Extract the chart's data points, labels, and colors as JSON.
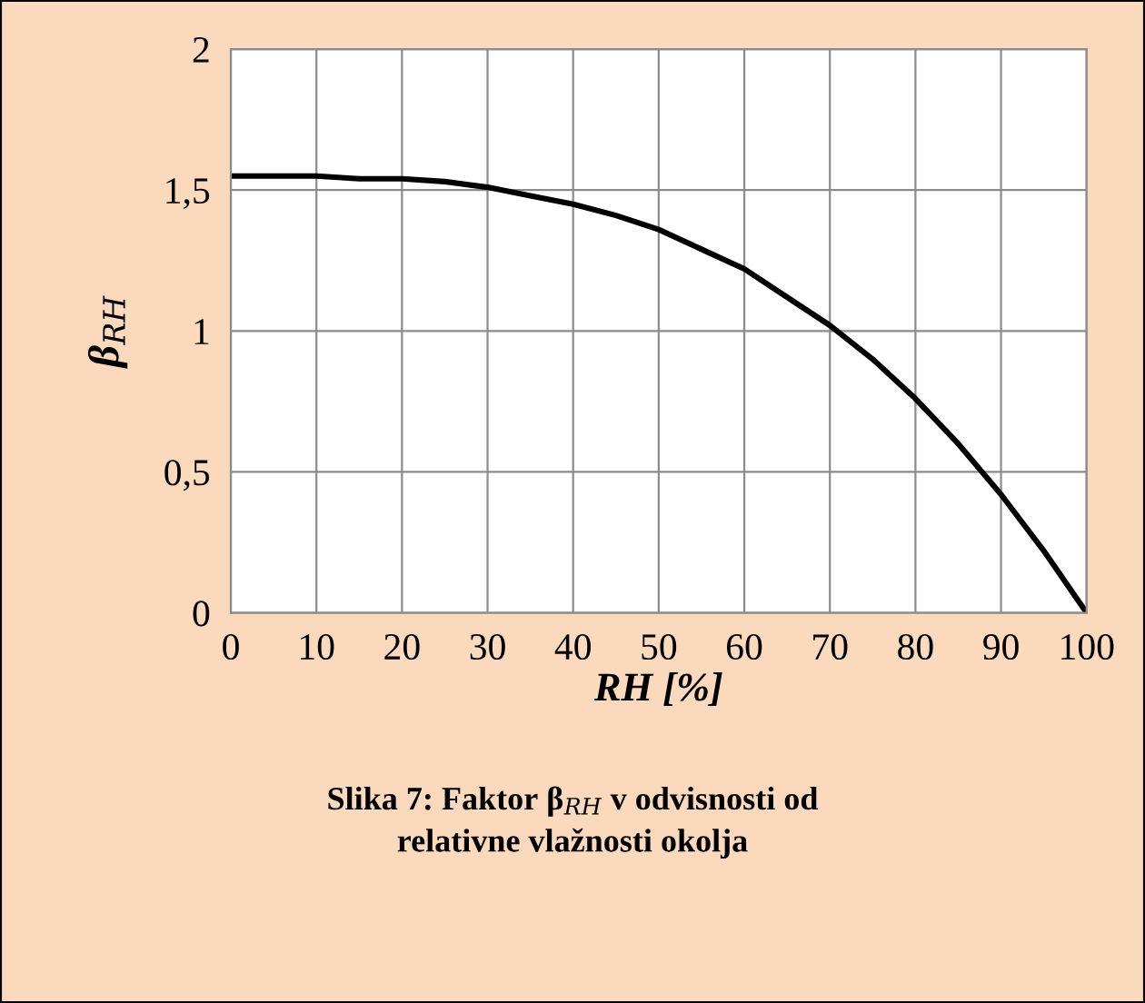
{
  "chart_data": {
    "type": "line",
    "xlabel": "RH [%]",
    "ylabel": "β$_{RH}$",
    "x": [
      0,
      5,
      10,
      15,
      20,
      25,
      30,
      35,
      40,
      45,
      50,
      55,
      60,
      65,
      70,
      75,
      80,
      85,
      90,
      95,
      100
    ],
    "series": [
      {
        "color": "#000000",
        "values": [
          1.55,
          1.55,
          1.55,
          1.54,
          1.54,
          1.53,
          1.51,
          1.48,
          1.45,
          1.41,
          1.36,
          1.29,
          1.22,
          1.12,
          1.02,
          0.9,
          0.76,
          0.6,
          0.42,
          0.22,
          0
        ]
      }
    ],
    "xlim": [
      0,
      100
    ],
    "xticks": [
      0,
      10,
      20,
      30,
      40,
      50,
      60,
      70,
      80,
      90,
      100
    ],
    "ylim": [
      0,
      2
    ],
    "yticks": [
      0,
      {
        "value": 0.5,
        "label": "0,5"
      },
      1,
      {
        "value": 1.5,
        "label": "1,5"
      },
      2
    ],
    "grid": true,
    "marker": "none",
    "line_style": "solid",
    "annotations": [
      "Slika 7: Faktor β$_{RH}$ v odvisnosti od\nrelativne vlažnosti okolja"
    ]
  }
}
